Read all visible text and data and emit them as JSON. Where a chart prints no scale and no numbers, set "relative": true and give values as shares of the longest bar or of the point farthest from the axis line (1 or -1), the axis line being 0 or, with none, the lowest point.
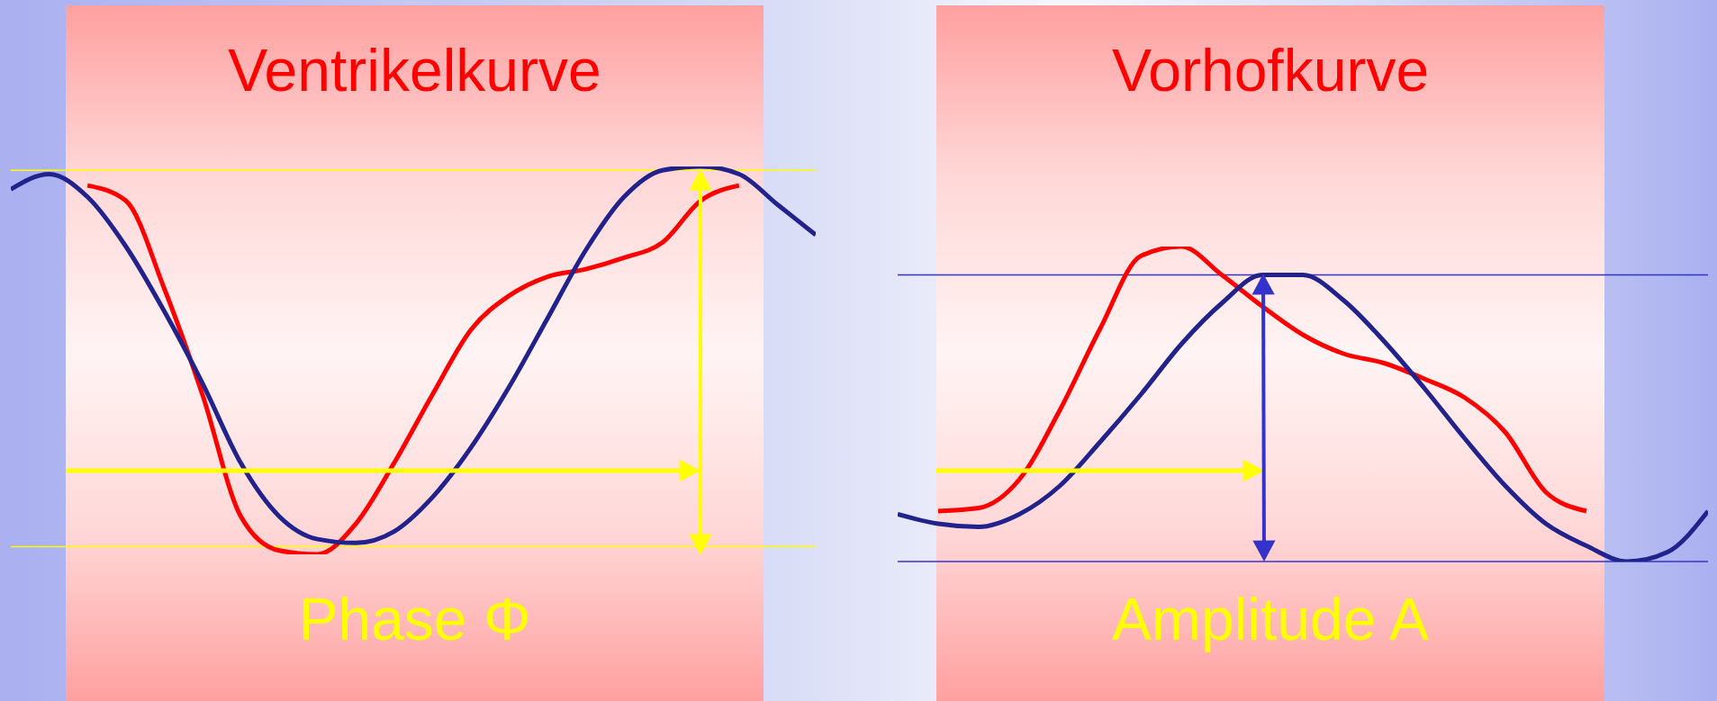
{
  "chart_data": [
    {
      "type": "line",
      "title": "Ventrikelkurve",
      "relative": true,
      "categories": [
        null,
        null,
        null,
        null,
        null,
        null,
        null,
        null,
        null,
        null,
        null,
        null,
        null,
        null,
        null,
        null,
        null,
        null,
        null,
        null,
        null,
        null
      ],
      "series": [
        {
          "color": "#ff0000",
          "values": [
            null,
            null,
            0.95,
            0.91,
            0.68,
            0.4,
            0.08,
            -0.01,
            -0.02,
            0.06,
            0.22,
            0.4,
            0.57,
            0.66,
            0.71,
            0.73,
            0.76,
            0.8,
            0.91,
            0.95,
            null,
            null
          ]
        },
        {
          "color": "#22228c",
          "values": [
            0.94,
            0.98,
            0.92,
            0.79,
            0.62,
            0.43,
            0.22,
            0.08,
            0.02,
            0.01,
            0.04,
            0.13,
            0.26,
            0.42,
            0.6,
            0.78,
            0.92,
            0.99,
            1.0,
            0.98,
            0.9,
            0.82
          ]
        }
      ],
      "ref_lines": [
        {
          "axis": "y",
          "value": 0.99,
          "color": "#ffff00"
        },
        {
          "axis": "y",
          "value": 0,
          "color": "#ffff00"
        }
      ],
      "annotations": [
        "Phase Φ"
      ]
    },
    {
      "type": "line",
      "title": "Vorhofkurve",
      "relative": true,
      "categories": [
        null,
        null,
        null,
        null,
        null,
        null,
        null,
        null,
        null,
        null,
        null,
        null,
        null,
        null,
        null,
        null,
        null,
        null,
        null,
        null,
        null
      ],
      "series": [
        {
          "color": "#ff0000",
          "values": [
            null,
            0.16,
            0.17,
            0.26,
            0.48,
            0.74,
            0.97,
            1.0,
            0.91,
            0.81,
            0.72,
            0.66,
            0.63,
            0.58,
            0.52,
            0.41,
            0.22,
            0.16,
            null,
            null,
            null
          ]
        },
        {
          "color": "#22228c",
          "values": [
            0.15,
            0.12,
            0.11,
            0.15,
            0.24,
            0.38,
            0.53,
            0.69,
            0.82,
            0.91,
            0.91,
            0.83,
            0.7,
            0.55,
            0.39,
            0.24,
            0.12,
            0.05,
            0,
            0.03,
            0.16
          ]
        }
      ],
      "ref_lines": [
        {
          "axis": "y",
          "value": 0.91,
          "color": "#3333cc"
        },
        {
          "axis": "y",
          "value": 0,
          "color": "#3333cc"
        }
      ],
      "annotations": [
        "Amplitude A"
      ]
    }
  ]
}
